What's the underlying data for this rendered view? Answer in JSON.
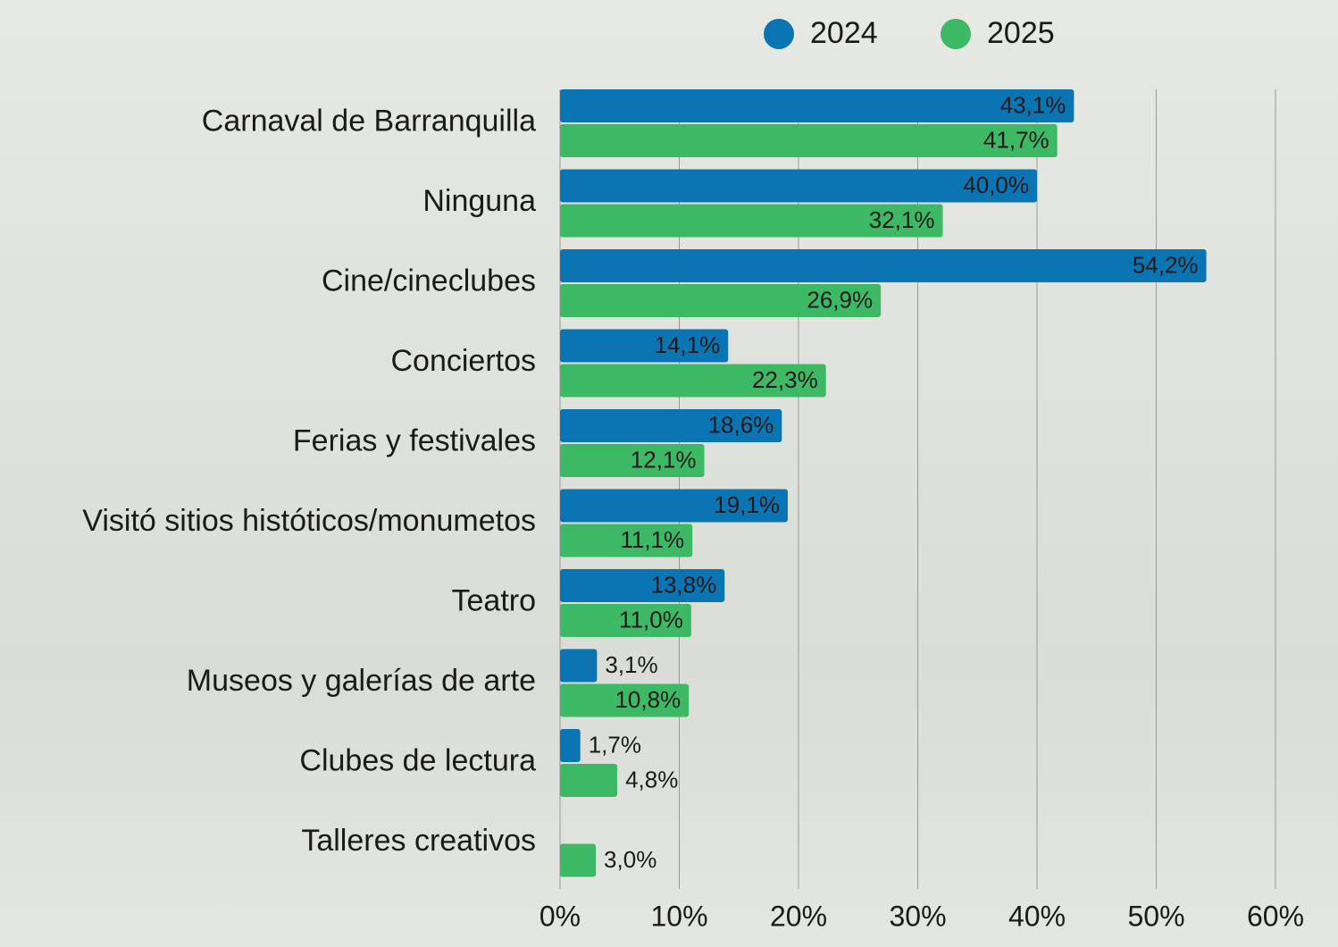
{
  "chart_data": {
    "type": "bar",
    "orientation": "horizontal",
    "categories": [
      "Carnaval de Barranquilla",
      "Ninguna",
      "Cine/cineclubes",
      "Conciertos",
      "Ferias y festivales",
      "Visitó sitios históticos/monumetos",
      "Teatro",
      "Museos y galerías de arte",
      "Clubes de lectura",
      "Talleres creativos"
    ],
    "series": [
      {
        "name": "2024",
        "color": "#0b74b2",
        "values": [
          43.1,
          40.0,
          54.2,
          14.1,
          18.6,
          19.1,
          13.8,
          3.1,
          1.7,
          null
        ],
        "value_labels": [
          "43,1%",
          "40,0%",
          "54,2%",
          "14,1%",
          "18,6%",
          "19,1%",
          "13,8%",
          "3,1%",
          "1,7%",
          null
        ]
      },
      {
        "name": "2025",
        "color": "#3db865",
        "values": [
          41.7,
          32.1,
          26.9,
          22.3,
          12.1,
          11.1,
          11.0,
          10.8,
          4.8,
          3.0
        ],
        "value_labels": [
          "41,7%",
          "32,1%",
          "26,9%",
          "22,3%",
          "12,1%",
          "11,1%",
          "11,0%",
          "10,8%",
          "4,8%",
          "3,0%"
        ]
      }
    ],
    "xlim": [
      0,
      60
    ],
    "xticks": [
      {
        "value": 0,
        "label": "0%"
      },
      {
        "value": 10,
        "label": "10%"
      },
      {
        "value": 20,
        "label": "20%"
      },
      {
        "value": 30,
        "label": "30%"
      },
      {
        "value": 40,
        "label": "40%"
      },
      {
        "value": 50,
        "label": "50%"
      },
      {
        "value": 60,
        "label": "60%"
      }
    ],
    "grid": true
  }
}
